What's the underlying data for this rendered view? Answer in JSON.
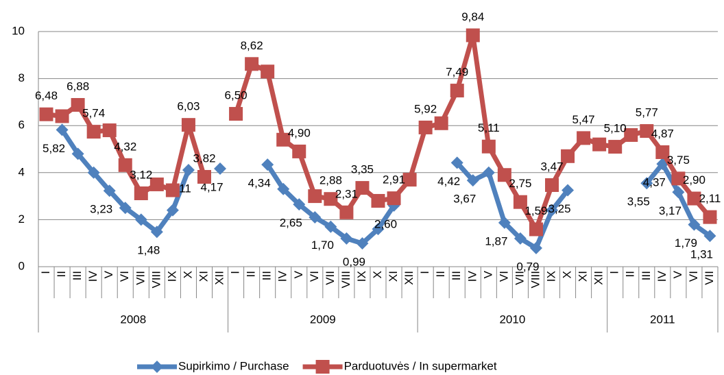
{
  "chart_data": {
    "type": "line",
    "groups": [
      {
        "label": "2008",
        "categories": [
          "I",
          "II",
          "III",
          "IV",
          "V",
          "VI",
          "VII",
          "VIII",
          "IX",
          "X",
          "XI",
          "XII"
        ]
      },
      {
        "label": "2009",
        "categories": [
          "I",
          "II",
          "III",
          "IV",
          "V",
          "VI",
          "VII",
          "VIII",
          "IX",
          "X",
          "XI",
          "XII"
        ]
      },
      {
        "label": "2010",
        "categories": [
          "I",
          "II",
          "III",
          "IV",
          "V",
          "VI",
          "VII",
          "VIII",
          "IX",
          "X",
          "XI",
          "XII"
        ]
      },
      {
        "label": "2011",
        "categories": [
          "I",
          "II",
          "III",
          "IV",
          "V",
          "VI",
          "VII"
        ]
      }
    ],
    "series": [
      {
        "name": "Supirkimo / Purchase",
        "color": "#4f81bd",
        "marker": "diamond",
        "values": [
          null,
          5.82,
          4.8,
          4.0,
          3.23,
          2.5,
          2.0,
          1.48,
          2.4,
          4.11,
          null,
          4.17,
          null,
          null,
          4.34,
          3.3,
          2.65,
          2.1,
          1.7,
          1.2,
          0.99,
          1.6,
          2.6,
          null,
          null,
          null,
          4.42,
          3.67,
          4.0,
          1.87,
          1.2,
          0.79,
          2.4,
          3.25,
          null,
          null,
          null,
          null,
          3.55,
          4.37,
          3.17,
          1.79,
          1.31
        ],
        "value_labels": [
          null,
          "5,82",
          null,
          null,
          "3,23",
          null,
          null,
          "1,48",
          null,
          "4,11",
          null,
          "4,17",
          null,
          null,
          "4,34",
          null,
          "2,65",
          null,
          "1,70",
          null,
          "0,99",
          null,
          "2,60",
          null,
          null,
          null,
          "4,42",
          "3,67",
          null,
          "1,87",
          null,
          "0,79",
          null,
          "3,25",
          null,
          null,
          null,
          null,
          "3,55",
          "4,37",
          "3,17",
          "1,79",
          "1,31"
        ]
      },
      {
        "name": "Parduotuvės / In supermarket",
        "color": "#c0504d",
        "marker": "square",
        "values": [
          6.48,
          6.4,
          6.88,
          5.74,
          5.8,
          4.32,
          3.12,
          3.5,
          3.25,
          6.03,
          3.82,
          null,
          6.5,
          8.62,
          8.3,
          5.4,
          4.9,
          3.0,
          2.88,
          2.31,
          3.35,
          2.8,
          2.91,
          3.7,
          5.92,
          6.1,
          7.49,
          9.84,
          5.11,
          3.9,
          2.75,
          1.59,
          3.47,
          4.7,
          5.47,
          5.2,
          5.1,
          5.6,
          5.77,
          4.87,
          3.75,
          2.9,
          2.11
        ],
        "value_labels": [
          "6,48",
          null,
          "6,88",
          "5,74",
          null,
          "4,32",
          "3,12",
          null,
          null,
          "6,03",
          "3,82",
          null,
          "6,50",
          "8,62",
          null,
          null,
          "4,90",
          null,
          "2,88",
          "2,31",
          "3,35",
          null,
          "2,91",
          null,
          "5,92",
          null,
          "7,49",
          "9,84",
          "5,11",
          null,
          "2,75",
          "1,59",
          "3,47",
          null,
          "5,47",
          null,
          "5,10",
          null,
          "5,77",
          "4,87",
          "3,75",
          "2,90",
          "2,11"
        ]
      }
    ],
    "ylim": [
      0,
      10
    ],
    "yticks": [
      0,
      2,
      4,
      6,
      8,
      10
    ],
    "grid": true,
    "legend": "bottom"
  }
}
